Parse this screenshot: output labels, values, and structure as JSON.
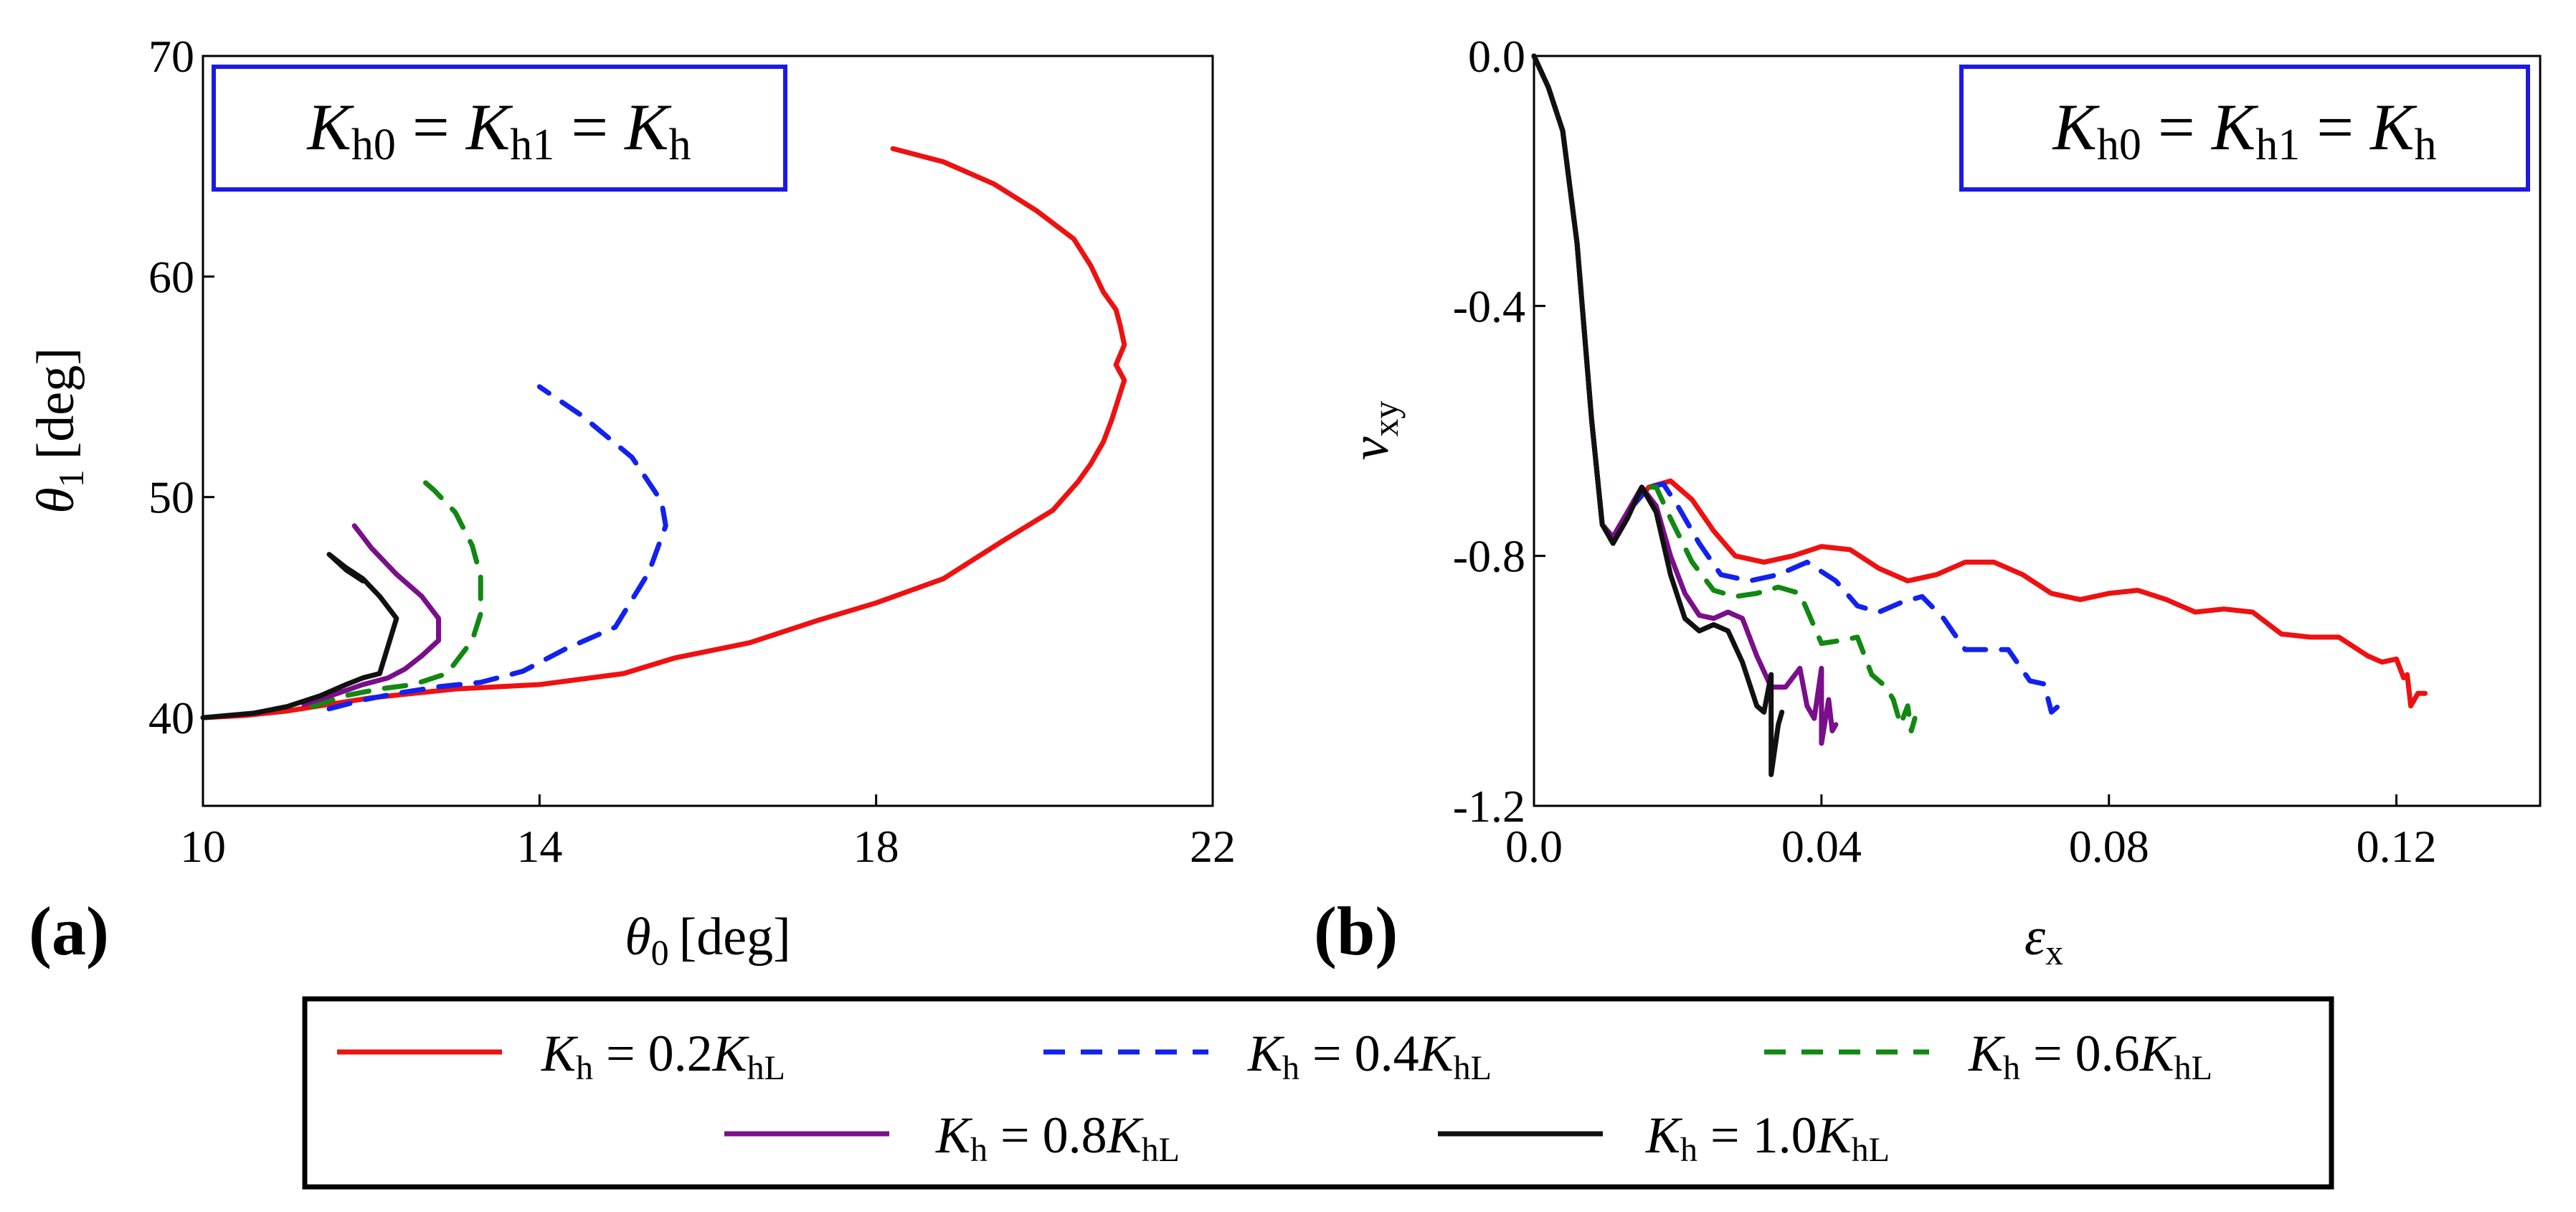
{
  "chart_data": [
    {
      "type": "line",
      "panel_label": "(a)",
      "xlabel": {
        "sym": "θ",
        "sub": "0",
        "unit": "[deg]"
      },
      "ylabel": {
        "sym": "θ",
        "sub": "1",
        "unit": "[deg]"
      },
      "xlim": [
        10,
        22
      ],
      "ylim": [
        36,
        70
      ],
      "xticks": [
        10,
        14,
        18,
        22
      ],
      "xtick_labels": [
        "10",
        "14",
        "18",
        "22"
      ],
      "yticks": [
        40,
        50,
        60,
        70
      ],
      "ytick_labels": [
        "40",
        "50",
        "60",
        "70"
      ],
      "annotation": {
        "K1": "K",
        "s1": "h0",
        "eq1": " = ",
        "K2": "K",
        "s2": "h1",
        "eq2": " = ",
        "K3": "K",
        "s3": "h"
      },
      "series": [
        {
          "name": "K_h = 0.2K_hL",
          "x": [
            10.0,
            10.5,
            11.0,
            11.5,
            12.0,
            12.5,
            13.0,
            14.0,
            15.0,
            15.6,
            16.5,
            17.3,
            18.0,
            18.8,
            19.5,
            20.1,
            20.4,
            20.55,
            20.7,
            20.8,
            20.95,
            20.85,
            20.95,
            20.9,
            20.85,
            20.7,
            20.55,
            20.35,
            19.9,
            19.4,
            18.8,
            18.2
          ],
          "y": [
            40.0,
            40.1,
            40.3,
            40.6,
            40.9,
            41.1,
            41.3,
            41.5,
            42.0,
            42.7,
            43.4,
            44.4,
            45.2,
            46.3,
            48.0,
            49.4,
            50.7,
            51.5,
            52.5,
            53.5,
            55.3,
            56.0,
            56.9,
            57.8,
            58.5,
            59.3,
            60.5,
            61.7,
            63.0,
            64.2,
            65.2,
            65.8
          ]
        },
        {
          "name": "K_h = 0.4K_hL",
          "x": [
            11.5,
            11.9,
            12.3,
            12.8,
            13.3,
            13.8,
            14.3,
            14.9,
            15.3,
            15.5,
            15.45,
            15.1,
            14.5,
            14.0
          ],
          "y": [
            40.4,
            40.8,
            41.1,
            41.4,
            41.6,
            42.1,
            43.1,
            44.1,
            46.6,
            48.7,
            49.8,
            51.8,
            53.7,
            55.0
          ]
        },
        {
          "name": "K_h = 0.6K_hL",
          "x": [
            11.3,
            11.7,
            12.1,
            12.5,
            12.9,
            13.2,
            13.3,
            13.3,
            13.2,
            13.0,
            12.75,
            12.6
          ],
          "y": [
            40.5,
            41.0,
            41.3,
            41.5,
            42.0,
            43.5,
            44.7,
            46.4,
            47.8,
            49.3,
            50.3,
            50.8
          ]
        },
        {
          "name": "K_h = 0.8K_hL",
          "x": [
            11.2,
            11.6,
            11.9,
            12.2,
            12.4,
            12.6,
            12.8,
            12.8,
            12.6,
            12.3,
            12.0,
            11.8
          ],
          "y": [
            40.6,
            41.1,
            41.5,
            41.8,
            42.2,
            42.8,
            43.5,
            44.5,
            45.5,
            46.5,
            47.7,
            48.7
          ]
        },
        {
          "name": "K_h = 1.0K_hL",
          "x": [
            10.0,
            10.6,
            11.0,
            11.4,
            11.7,
            11.9,
            12.1,
            12.3,
            12.1,
            11.9,
            11.7,
            11.5,
            11.7,
            11.9
          ],
          "y": [
            40.0,
            40.2,
            40.5,
            41.0,
            41.5,
            41.8,
            42.0,
            44.5,
            45.5,
            46.3,
            46.8,
            47.4,
            46.7,
            46.2
          ]
        }
      ]
    },
    {
      "type": "line",
      "panel_label": "(b)",
      "xlabel": {
        "sym": "ε",
        "sub": "x",
        "unit": ""
      },
      "ylabel": {
        "sym": "ν",
        "sub": "xy",
        "unit": ""
      },
      "xlim": [
        0.0,
        0.14
      ],
      "ylim": [
        -1.2,
        0.0
      ],
      "xticks": [
        0.0,
        0.04,
        0.08,
        0.12
      ],
      "xtick_labels": [
        "0.0",
        "0.04",
        "0.08",
        "0.12"
      ],
      "yticks": [
        0.0,
        -0.4,
        -0.8,
        -1.2
      ],
      "ytick_labels": [
        "0.0",
        "-0.4",
        "-0.8",
        "-1.2"
      ],
      "annotation": {
        "K1": "K",
        "s1": "h0",
        "eq1": " = ",
        "K2": "K",
        "s2": "h1",
        "eq2": " = ",
        "K3": "K",
        "s3": "h"
      },
      "series": [
        {
          "name": "K_h = 0.2K_hL",
          "x": [
            0.0,
            0.002,
            0.004,
            0.006,
            0.008,
            0.0095,
            0.011,
            0.013,
            0.016,
            0.019,
            0.022,
            0.025,
            0.028,
            0.032,
            0.036,
            0.04,
            0.044,
            0.048,
            0.052,
            0.056,
            0.06,
            0.064,
            0.068,
            0.072,
            0.076,
            0.08,
            0.084,
            0.088,
            0.092,
            0.096,
            0.1,
            0.104,
            0.108,
            0.112,
            0.116,
            0.118,
            0.12,
            0.121,
            0.1215,
            0.122,
            0.123,
            0.124
          ],
          "y": [
            0.0,
            -0.05,
            -0.12,
            -0.3,
            -0.58,
            -0.75,
            -0.77,
            -0.73,
            -0.69,
            -0.68,
            -0.71,
            -0.76,
            -0.8,
            -0.81,
            -0.8,
            -0.785,
            -0.79,
            -0.82,
            -0.84,
            -0.83,
            -0.81,
            -0.81,
            -0.83,
            -0.86,
            -0.87,
            -0.86,
            -0.855,
            -0.87,
            -0.89,
            -0.885,
            -0.89,
            -0.925,
            -0.93,
            -0.93,
            -0.96,
            -0.97,
            -0.965,
            -0.995,
            -0.99,
            -1.04,
            -1.02,
            -1.02
          ]
        },
        {
          "name": "K_h = 0.4K_hL",
          "x": [
            0.0,
            0.002,
            0.004,
            0.006,
            0.008,
            0.0095,
            0.011,
            0.013,
            0.016,
            0.018,
            0.02,
            0.023,
            0.026,
            0.03,
            0.034,
            0.038,
            0.042,
            0.045,
            0.048,
            0.051,
            0.054,
            0.057,
            0.06,
            0.063,
            0.066,
            0.069,
            0.071,
            0.072,
            0.073,
            0.074
          ],
          "y": [
            0.0,
            -0.05,
            -0.12,
            -0.3,
            -0.58,
            -0.75,
            -0.77,
            -0.73,
            -0.69,
            -0.685,
            -0.72,
            -0.78,
            -0.83,
            -0.84,
            -0.83,
            -0.81,
            -0.84,
            -0.88,
            -0.89,
            -0.875,
            -0.865,
            -0.9,
            -0.95,
            -0.95,
            -0.95,
            -1.0,
            -1.005,
            -1.05,
            -1.04,
            -1.04
          ]
        },
        {
          "name": "K_h = 0.6K_hL",
          "x": [
            0.0,
            0.002,
            0.004,
            0.006,
            0.008,
            0.0095,
            0.011,
            0.013,
            0.015,
            0.017,
            0.019,
            0.022,
            0.025,
            0.028,
            0.031,
            0.034,
            0.037,
            0.04,
            0.043,
            0.045,
            0.047,
            0.049,
            0.05,
            0.051,
            0.052,
            0.0525,
            0.053
          ],
          "y": [
            0.0,
            -0.05,
            -0.12,
            -0.3,
            -0.58,
            -0.75,
            -0.77,
            -0.73,
            -0.69,
            -0.69,
            -0.74,
            -0.81,
            -0.855,
            -0.865,
            -0.86,
            -0.85,
            -0.86,
            -0.94,
            -0.935,
            -0.93,
            -0.99,
            -1.01,
            -1.03,
            -1.07,
            -1.04,
            -1.08,
            -1.06
          ]
        },
        {
          "name": "K_h = 0.8K_hL",
          "x": [
            0.0,
            0.002,
            0.004,
            0.006,
            0.008,
            0.0095,
            0.011,
            0.013,
            0.015,
            0.017,
            0.019,
            0.021,
            0.023,
            0.025,
            0.027,
            0.029,
            0.031,
            0.033,
            0.035,
            0.037,
            0.038,
            0.039,
            0.04,
            0.04,
            0.041,
            0.0415,
            0.042
          ],
          "y": [
            0.0,
            -0.05,
            -0.12,
            -0.3,
            -0.58,
            -0.75,
            -0.77,
            -0.73,
            -0.69,
            -0.72,
            -0.8,
            -0.86,
            -0.895,
            -0.9,
            -0.89,
            -0.9,
            -0.96,
            -1.01,
            -1.01,
            -0.98,
            -1.04,
            -1.06,
            -0.98,
            -1.1,
            -1.03,
            -1.08,
            -1.07
          ]
        },
        {
          "name": "K_h = 1.0K_hL",
          "x": [
            0.0,
            0.002,
            0.004,
            0.006,
            0.008,
            0.0095,
            0.011,
            0.013,
            0.015,
            0.017,
            0.019,
            0.021,
            0.023,
            0.025,
            0.027,
            0.029,
            0.031,
            0.032,
            0.033,
            0.033,
            0.034,
            0.0345
          ],
          "y": [
            0.0,
            -0.05,
            -0.12,
            -0.3,
            -0.58,
            -0.75,
            -0.78,
            -0.74,
            -0.69,
            -0.73,
            -0.83,
            -0.9,
            -0.92,
            -0.91,
            -0.92,
            -0.97,
            -1.04,
            -1.05,
            -0.99,
            -1.15,
            -1.07,
            -1.05
          ]
        }
      ]
    }
  ],
  "legend": {
    "items": [
      {
        "K": "K",
        "hs": "h",
        "eq": " = ",
        "coef": "0.2",
        "K2": "K",
        "hL": "hL",
        "color": "#ee1111",
        "dash": "solid"
      },
      {
        "K": "K",
        "hs": "h",
        "eq": " = ",
        "coef": "0.4",
        "K2": "K",
        "hL": "hL",
        "color": "#1122ee",
        "dash": "dashed"
      },
      {
        "K": "K",
        "hs": "h",
        "eq": " = ",
        "coef": "0.6",
        "K2": "K",
        "hL": "hL",
        "color": "#118811",
        "dash": "dashed"
      },
      {
        "K": "K",
        "hs": "h",
        "eq": " = ",
        "coef": "0.8",
        "K2": "K",
        "hL": "hL",
        "color": "#7a0f8a",
        "dash": "solid"
      },
      {
        "K": "K",
        "hs": "h",
        "eq": " = ",
        "coef": "1.0",
        "K2": "K",
        "hL": "hL",
        "color": "#111111",
        "dash": "solid"
      }
    ]
  },
  "colors": {
    "box_border": "#1a1ae6",
    "axis": "#000000"
  }
}
